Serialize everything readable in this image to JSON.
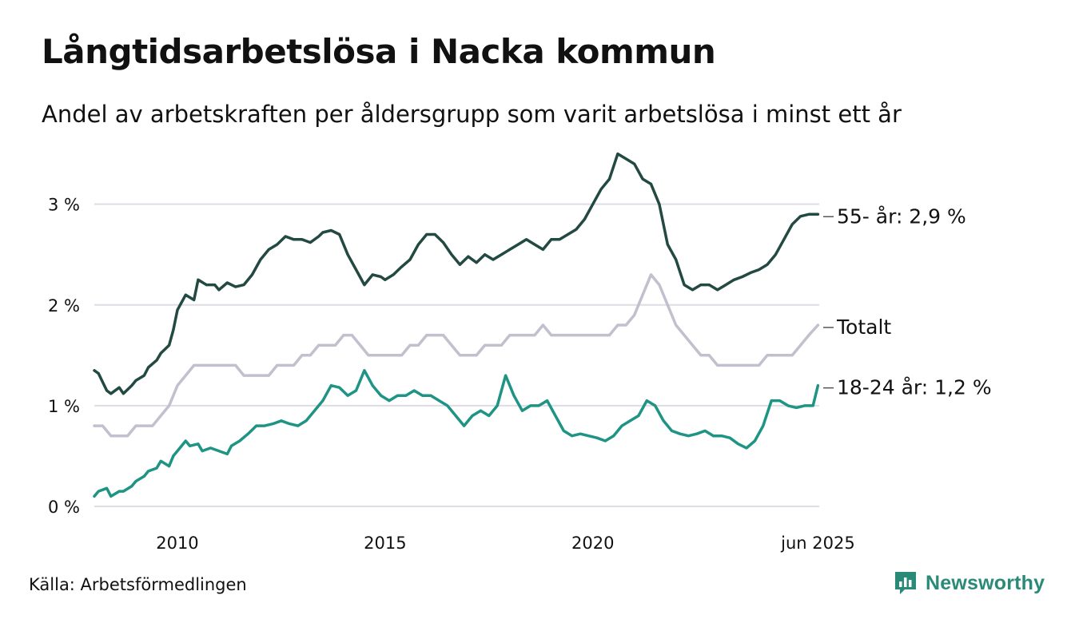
{
  "header": {
    "title": "Långtidsarbetslösa i Nacka kommun",
    "subtitle": "Andel av arbetskraften per åldersgrupp som varit arbetslösa i minst ett år"
  },
  "footer": {
    "source": "Källa: Arbetsförmedlingen",
    "brand": "Newsworthy",
    "brand_icon": "newsworthy-logo-icon"
  },
  "colors": {
    "s55": "#234a42",
    "total": "#c2bfce",
    "s18": "#1f9484",
    "grid": "#dedde6",
    "brand": "#2a8a78"
  },
  "chart_data": {
    "type": "line",
    "title": "Långtidsarbetslösa i Nacka kommun",
    "subtitle": "Andel av arbetskraften per åldersgrupp som varit arbetslösa i minst ett år",
    "xlabel": "",
    "ylabel": "",
    "x_range": [
      2008.0,
      2025.45
    ],
    "ylim": [
      0,
      3.6
    ],
    "y_ticks": [
      0,
      1,
      2,
      3
    ],
    "y_tick_labels": [
      "0 %",
      "1 %",
      "2 %",
      "3 %"
    ],
    "x_ticks": [
      2010,
      2015,
      2020,
      2025.42
    ],
    "x_tick_labels": [
      "2010",
      "2015",
      "2020",
      "jun 2025"
    ],
    "grid": true,
    "legend": "end-labels",
    "series": [
      {
        "key": "s55",
        "end_label": "55- år: 2,9 %",
        "x": [
          2008.0,
          2008.1,
          2008.3,
          2008.4,
          2008.6,
          2008.7,
          2008.9,
          2009.0,
          2009.2,
          2009.3,
          2009.5,
          2009.6,
          2009.8,
          2009.9,
          2010.0,
          2010.2,
          2010.4,
          2010.5,
          2010.7,
          2010.9,
          2011.0,
          2011.2,
          2011.4,
          2011.6,
          2011.8,
          2012.0,
          2012.2,
          2012.4,
          2012.6,
          2012.8,
          2013.0,
          2013.2,
          2013.4,
          2013.5,
          2013.7,
          2013.9,
          2014.1,
          2014.3,
          2014.5,
          2014.7,
          2014.9,
          2015.0,
          2015.2,
          2015.4,
          2015.6,
          2015.8,
          2016.0,
          2016.2,
          2016.4,
          2016.6,
          2016.8,
          2017.0,
          2017.2,
          2017.4,
          2017.6,
          2017.8,
          2018.0,
          2018.2,
          2018.4,
          2018.6,
          2018.8,
          2019.0,
          2019.2,
          2019.4,
          2019.6,
          2019.8,
          2020.0,
          2020.2,
          2020.4,
          2020.6,
          2020.8,
          2021.0,
          2021.2,
          2021.4,
          2021.6,
          2021.8,
          2022.0,
          2022.2,
          2022.4,
          2022.6,
          2022.8,
          2023.0,
          2023.2,
          2023.4,
          2023.6,
          2023.8,
          2024.0,
          2024.2,
          2024.4,
          2024.6,
          2024.8,
          2025.0,
          2025.2,
          2025.42
        ],
        "y": [
          1.35,
          1.32,
          1.15,
          1.12,
          1.18,
          1.12,
          1.2,
          1.25,
          1.3,
          1.38,
          1.45,
          1.52,
          1.6,
          1.75,
          1.95,
          2.1,
          2.05,
          2.25,
          2.2,
          2.2,
          2.15,
          2.22,
          2.18,
          2.2,
          2.3,
          2.45,
          2.55,
          2.6,
          2.68,
          2.65,
          2.65,
          2.62,
          2.68,
          2.72,
          2.74,
          2.7,
          2.5,
          2.35,
          2.2,
          2.3,
          2.28,
          2.25,
          2.3,
          2.38,
          2.45,
          2.6,
          2.7,
          2.7,
          2.62,
          2.5,
          2.4,
          2.48,
          2.42,
          2.5,
          2.45,
          2.5,
          2.55,
          2.6,
          2.65,
          2.6,
          2.55,
          2.65,
          2.65,
          2.7,
          2.75,
          2.85,
          3.0,
          3.15,
          3.25,
          3.5,
          3.45,
          3.4,
          3.25,
          3.2,
          3.0,
          2.6,
          2.45,
          2.2,
          2.15,
          2.2,
          2.2,
          2.15,
          2.2,
          2.25,
          2.28,
          2.32,
          2.35,
          2.4,
          2.5,
          2.65,
          2.8,
          2.88,
          2.9,
          2.9
        ],
        "last_value": 2.9
      },
      {
        "key": "total",
        "end_label": "Totalt",
        "x": [
          2008.0,
          2008.2,
          2008.4,
          2008.6,
          2008.8,
          2009.0,
          2009.2,
          2009.4,
          2009.6,
          2009.8,
          2010.0,
          2010.2,
          2010.4,
          2010.6,
          2010.8,
          2011.0,
          2011.2,
          2011.4,
          2011.6,
          2011.8,
          2012.0,
          2012.2,
          2012.4,
          2012.6,
          2012.8,
          2013.0,
          2013.2,
          2013.4,
          2013.6,
          2013.8,
          2014.0,
          2014.2,
          2014.4,
          2014.6,
          2014.8,
          2015.0,
          2015.2,
          2015.4,
          2015.6,
          2015.8,
          2016.0,
          2016.2,
          2016.4,
          2016.6,
          2016.8,
          2017.0,
          2017.2,
          2017.4,
          2017.6,
          2017.8,
          2018.0,
          2018.2,
          2018.4,
          2018.6,
          2018.8,
          2019.0,
          2019.2,
          2019.4,
          2019.6,
          2019.8,
          2020.0,
          2020.2,
          2020.4,
          2020.6,
          2020.8,
          2021.0,
          2021.2,
          2021.4,
          2021.6,
          2021.8,
          2022.0,
          2022.2,
          2022.4,
          2022.6,
          2022.8,
          2023.0,
          2023.2,
          2023.4,
          2023.6,
          2023.8,
          2024.0,
          2024.2,
          2024.4,
          2024.6,
          2024.8,
          2025.0,
          2025.2,
          2025.42
        ],
        "y": [
          0.8,
          0.8,
          0.7,
          0.7,
          0.7,
          0.8,
          0.8,
          0.8,
          0.9,
          1.0,
          1.2,
          1.3,
          1.4,
          1.4,
          1.4,
          1.4,
          1.4,
          1.4,
          1.3,
          1.3,
          1.3,
          1.3,
          1.4,
          1.4,
          1.4,
          1.5,
          1.5,
          1.6,
          1.6,
          1.6,
          1.7,
          1.7,
          1.6,
          1.5,
          1.5,
          1.5,
          1.5,
          1.5,
          1.6,
          1.6,
          1.7,
          1.7,
          1.7,
          1.6,
          1.5,
          1.5,
          1.5,
          1.6,
          1.6,
          1.6,
          1.7,
          1.7,
          1.7,
          1.7,
          1.8,
          1.7,
          1.7,
          1.7,
          1.7,
          1.7,
          1.7,
          1.7,
          1.7,
          1.8,
          1.8,
          1.9,
          2.1,
          2.3,
          2.2,
          2.0,
          1.8,
          1.7,
          1.6,
          1.5,
          1.5,
          1.4,
          1.4,
          1.4,
          1.4,
          1.4,
          1.4,
          1.5,
          1.5,
          1.5,
          1.5,
          1.6,
          1.7,
          1.8
        ],
        "last_value": 1.8
      },
      {
        "key": "s18",
        "end_label": "18-24 år: 1,2 %",
        "x": [
          2008.0,
          2008.1,
          2008.3,
          2008.4,
          2008.6,
          2008.7,
          2008.9,
          2009.0,
          2009.2,
          2009.3,
          2009.5,
          2009.6,
          2009.8,
          2009.9,
          2010.0,
          2010.2,
          2010.3,
          2010.5,
          2010.6,
          2010.8,
          2011.0,
          2011.2,
          2011.3,
          2011.5,
          2011.7,
          2011.9,
          2012.1,
          2012.3,
          2012.5,
          2012.7,
          2012.9,
          2013.1,
          2013.3,
          2013.5,
          2013.7,
          2013.9,
          2014.1,
          2014.3,
          2014.5,
          2014.7,
          2014.9,
          2015.1,
          2015.3,
          2015.5,
          2015.7,
          2015.9,
          2016.1,
          2016.3,
          2016.5,
          2016.7,
          2016.9,
          2017.1,
          2017.3,
          2017.5,
          2017.7,
          2017.9,
          2018.1,
          2018.3,
          2018.5,
          2018.7,
          2018.9,
          2019.1,
          2019.3,
          2019.5,
          2019.7,
          2019.9,
          2020.1,
          2020.3,
          2020.5,
          2020.7,
          2020.9,
          2021.1,
          2021.3,
          2021.5,
          2021.7,
          2021.9,
          2022.1,
          2022.3,
          2022.5,
          2022.7,
          2022.9,
          2023.1,
          2023.3,
          2023.5,
          2023.7,
          2023.9,
          2024.1,
          2024.3,
          2024.5,
          2024.7,
          2024.9,
          2025.1,
          2025.3,
          2025.42
        ],
        "y": [
          0.1,
          0.15,
          0.18,
          0.1,
          0.15,
          0.15,
          0.2,
          0.25,
          0.3,
          0.35,
          0.38,
          0.45,
          0.4,
          0.5,
          0.55,
          0.65,
          0.6,
          0.62,
          0.55,
          0.58,
          0.55,
          0.52,
          0.6,
          0.65,
          0.72,
          0.8,
          0.8,
          0.82,
          0.85,
          0.82,
          0.8,
          0.85,
          0.95,
          1.05,
          1.2,
          1.18,
          1.1,
          1.15,
          1.35,
          1.2,
          1.1,
          1.05,
          1.1,
          1.1,
          1.15,
          1.1,
          1.1,
          1.05,
          1.0,
          0.9,
          0.8,
          0.9,
          0.95,
          0.9,
          1.0,
          1.3,
          1.1,
          0.95,
          1.0,
          1.0,
          1.05,
          0.9,
          0.75,
          0.7,
          0.72,
          0.7,
          0.68,
          0.65,
          0.7,
          0.8,
          0.85,
          0.9,
          1.05,
          1.0,
          0.85,
          0.75,
          0.72,
          0.7,
          0.72,
          0.75,
          0.7,
          0.7,
          0.68,
          0.62,
          0.58,
          0.65,
          0.8,
          1.05,
          1.05,
          1.0,
          0.98,
          1.0,
          1.0,
          1.2
        ],
        "last_value": 1.2
      }
    ]
  }
}
